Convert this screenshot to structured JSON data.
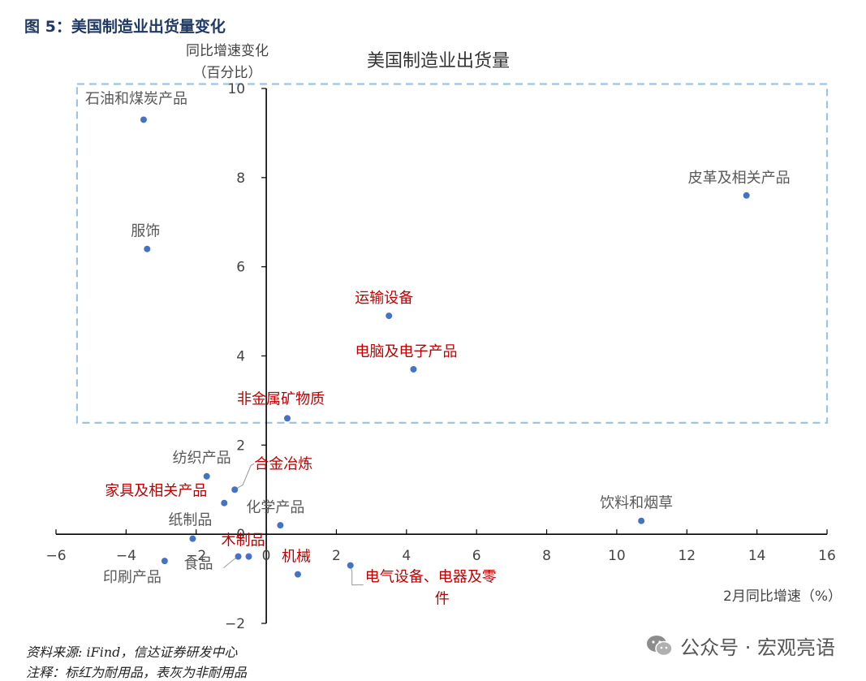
{
  "figure_title": "图 5：美国制造业出货量变化",
  "source_note": "资料来源: iFind，信达证券研发中心",
  "remark_note": "注释：标红为耐用品，表灰为非耐用品",
  "watermark": {
    "text": "公众号 · 宏观亮语",
    "icon": "wechat-icon"
  },
  "colors": {
    "point": "#4472c4",
    "durable": "#c00000",
    "nondurable": "#595959",
    "box": "#9dc3e6",
    "title_blue": "#1f3864"
  },
  "chart_data": {
    "type": "scatter",
    "title": "美国制造业出货量",
    "xlabel": "2月同比增速（%）",
    "ylabel": "同比增速变化",
    "ylabel_unit": "（百分比）",
    "xlim": [
      -6,
      16
    ],
    "ylim": [
      -2,
      10
    ],
    "xticks": [
      -6,
      -4,
      -2,
      0,
      2,
      4,
      6,
      8,
      10,
      12,
      14,
      16
    ],
    "yticks": [
      -2,
      0,
      2,
      4,
      6,
      8,
      10
    ],
    "highlight_box": {
      "x": [
        -5.4,
        16
      ],
      "y": [
        2.5,
        10.1
      ]
    },
    "points": [
      {
        "name": "石油和煤炭产品",
        "x": -3.5,
        "y": 9.3,
        "category": "nondurable"
      },
      {
        "name": "服饰",
        "x": -3.4,
        "y": 6.4,
        "category": "nondurable"
      },
      {
        "name": "皮革及相关产品",
        "x": 13.7,
        "y": 7.6,
        "category": "nondurable"
      },
      {
        "name": "运输设备",
        "x": 3.5,
        "y": 4.9,
        "category": "durable"
      },
      {
        "name": "电脑及电子产品",
        "x": 4.2,
        "y": 3.7,
        "category": "durable"
      },
      {
        "name": "非金属矿物质",
        "x": 0.6,
        "y": 2.6,
        "category": "durable"
      },
      {
        "name": "纺织产品",
        "x": -1.7,
        "y": 1.3,
        "category": "nondurable"
      },
      {
        "name": "合金冶炼",
        "x": -0.9,
        "y": 1.0,
        "category": "durable"
      },
      {
        "name": "家具及相关产品",
        "x": -1.2,
        "y": 0.7,
        "category": "durable"
      },
      {
        "name": "化学产品",
        "x": 0.4,
        "y": 0.2,
        "category": "nondurable"
      },
      {
        "name": "纸制品",
        "x": -2.1,
        "y": -0.1,
        "category": "nondurable"
      },
      {
        "name": "饮料和烟草",
        "x": 10.7,
        "y": 0.3,
        "category": "nondurable"
      },
      {
        "name": "木制品",
        "x": -0.5,
        "y": -0.5,
        "category": "durable"
      },
      {
        "name": "食品",
        "x": -0.8,
        "y": -0.5,
        "category": "nondurable"
      },
      {
        "name": "印刷产品",
        "x": -2.9,
        "y": -0.6,
        "category": "nondurable"
      },
      {
        "name": "机械",
        "x": 0.9,
        "y": -0.9,
        "category": "durable"
      },
      {
        "name": "电气设备、电器及零件",
        "x": 2.4,
        "y": -0.7,
        "category": "durable"
      }
    ]
  }
}
